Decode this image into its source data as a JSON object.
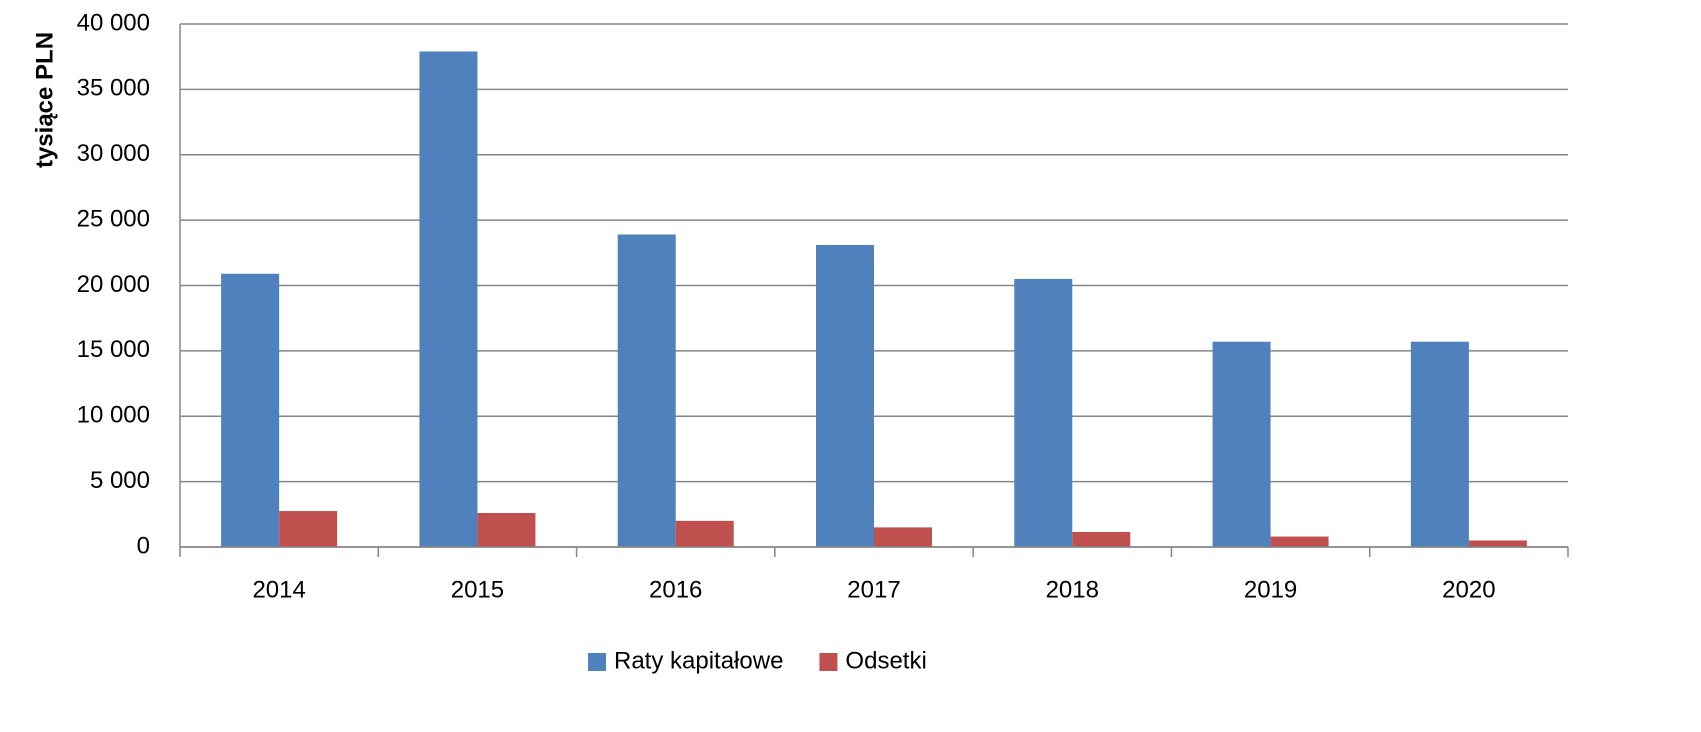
{
  "chart_data": {
    "type": "bar",
    "y_label": "tysiące PLN",
    "categories": [
      "2014",
      "2015",
      "2016",
      "2017",
      "2018",
      "2019",
      "2020"
    ],
    "series": [
      {
        "name": "Raty kapitałowe",
        "color": "#4f81bd",
        "values": [
          20900,
          37900,
          23900,
          23100,
          20500,
          15700,
          15700
        ]
      },
      {
        "name": "Odsetki",
        "color": "#c0504d",
        "values": [
          2750,
          2600,
          2000,
          1500,
          1150,
          800,
          500
        ]
      }
    ],
    "ylim": [
      0,
      40000
    ],
    "yticks": [
      {
        "value": 0,
        "label": "0"
      },
      {
        "value": 5000,
        "label": "5 000"
      },
      {
        "value": 10000,
        "label": "10 000"
      },
      {
        "value": 15000,
        "label": "15 000"
      },
      {
        "value": 20000,
        "label": "20 000"
      },
      {
        "value": 25000,
        "label": "25 000"
      },
      {
        "value": 30000,
        "label": "30 000"
      },
      {
        "value": 35000,
        "label": "35 000"
      },
      {
        "value": 40000,
        "label": "40 000"
      }
    ],
    "grid": true,
    "legend": "bottom"
  }
}
